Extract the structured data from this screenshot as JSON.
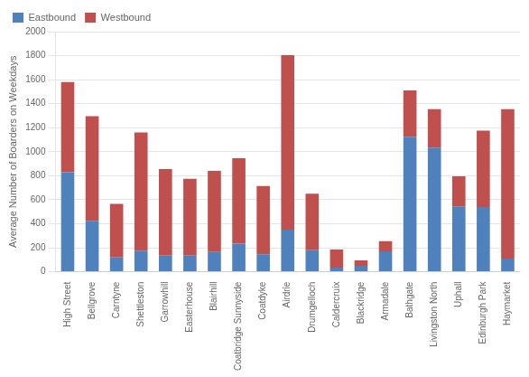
{
  "chart_data": {
    "type": "bar",
    "stacked": true,
    "categories": [
      "High Street",
      "Bellgrove",
      "Carntyne",
      "Shettleston",
      "Garrowhill",
      "Easterhouse",
      "Blairhill",
      "Coatbridge Sunnyside",
      "Coatdyke",
      "Airdrie",
      "Drumgelloch",
      "Caldercruix",
      "Blackridge",
      "Armadale",
      "Bathgate",
      "Livingston North",
      "Uphall",
      "Edinburgh Park",
      "Haymarket"
    ],
    "series": [
      {
        "name": "Eastbound",
        "color": "#4f81bd",
        "values": [
          830,
          425,
          120,
          175,
          135,
          135,
          165,
          235,
          145,
          350,
          180,
          35,
          50,
          170,
          1125,
          1035,
          545,
          540,
          110
        ]
      },
      {
        "name": "Westbound",
        "color": "#c0504d",
        "values": [
          750,
          870,
          445,
          985,
          720,
          640,
          675,
          710,
          570,
          1455,
          470,
          150,
          45,
          85,
          385,
          320,
          250,
          635,
          1245
        ]
      }
    ],
    "ylabel": "Average Number of Boarders on Weekdays",
    "ylim": [
      0,
      2000
    ],
    "yticks": [
      0,
      200,
      400,
      600,
      800,
      1000,
      1200,
      1400,
      1600,
      1800,
      2000
    ],
    "grid": true,
    "legend": "upper left"
  }
}
